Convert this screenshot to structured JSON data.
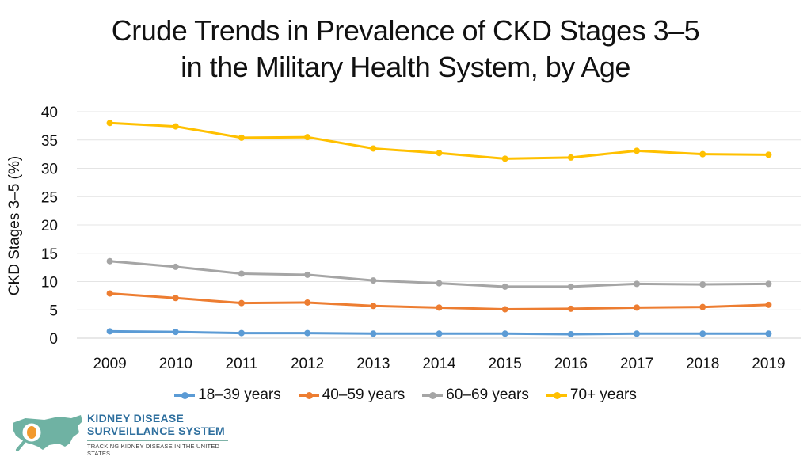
{
  "chart_data": {
    "type": "line",
    "title_line1": "Crude Trends in Prevalence of CKD Stages 3–5",
    "title_line2": "in the Military Health System, by Age",
    "xlabel": "",
    "ylabel": "CKD Stages 3–5 (%)",
    "ylim": [
      0,
      40
    ],
    "yticks": [
      0,
      5,
      10,
      15,
      20,
      25,
      30,
      35,
      40
    ],
    "x": [
      "2009",
      "2010",
      "2011",
      "2012",
      "2013",
      "2014",
      "2015",
      "2016",
      "2017",
      "2018",
      "2019"
    ],
    "grid": true,
    "legend_position": "bottom",
    "series": [
      {
        "name": "18–39 years",
        "color": "#5b9bd5",
        "values": [
          1.2,
          1.1,
          0.9,
          0.9,
          0.8,
          0.8,
          0.8,
          0.7,
          0.8,
          0.8,
          0.8
        ]
      },
      {
        "name": "40–59 years",
        "color": "#ed7d31",
        "values": [
          7.9,
          7.1,
          6.2,
          6.3,
          5.7,
          5.4,
          5.1,
          5.2,
          5.4,
          5.5,
          5.9
        ]
      },
      {
        "name": "60–69 years",
        "color": "#a5a5a5",
        "values": [
          13.6,
          12.6,
          11.4,
          11.2,
          10.2,
          9.7,
          9.1,
          9.1,
          9.6,
          9.5,
          9.6
        ]
      },
      {
        "name": "70+ years",
        "color": "#ffc000",
        "values": [
          38.0,
          37.4,
          35.4,
          35.5,
          33.5,
          32.7,
          31.7,
          31.9,
          33.1,
          32.5,
          32.4
        ]
      }
    ]
  },
  "logo": {
    "line1": "KIDNEY DISEASE",
    "line2": "SURVEILLANCE SYSTEM",
    "line3": "TRACKING KIDNEY DISEASE IN THE UNITED STATES",
    "map_color": "#6fb2a3",
    "accent_color": "#f29a2e"
  }
}
